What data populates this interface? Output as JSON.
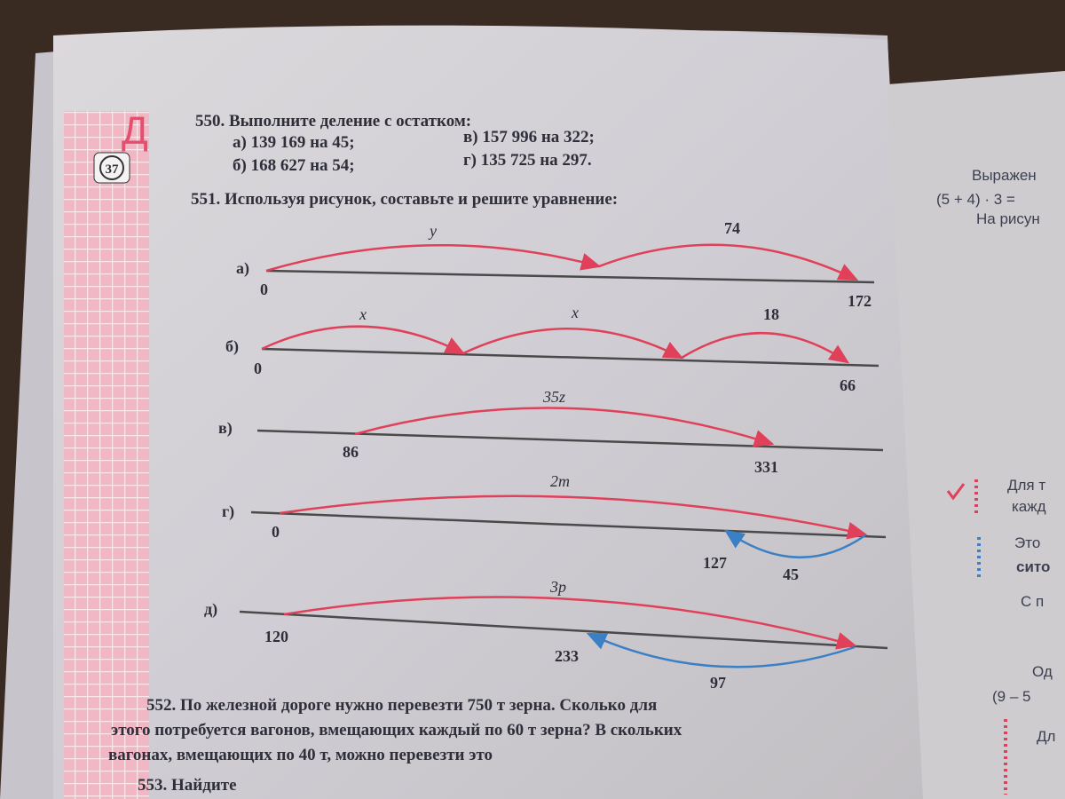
{
  "side": {
    "letter": "Д",
    "badge": "37"
  },
  "problem_550": {
    "title": "550. Выполните деление с остатком:",
    "items": [
      "а) 139 169 на 45;",
      "в) 157 996 на 322;",
      "б) 168 627 на 54;",
      "г) 135 725 на 297."
    ]
  },
  "problem_551": {
    "title": "551. Используя рисунок, составьте и решите уравнение:",
    "diagrams": [
      {
        "label": "а)",
        "points": [
          "0",
          "172"
        ],
        "arcs": [
          "y",
          "74"
        ]
      },
      {
        "label": "б)",
        "points": [
          "0",
          "66"
        ],
        "arcs": [
          "x",
          "x",
          "18"
        ]
      },
      {
        "label": "в)",
        "points": [
          "86",
          "331"
        ],
        "arcs": [
          "35z"
        ]
      },
      {
        "label": "г)",
        "points": [
          "0",
          "127"
        ],
        "arcs": [
          "2m",
          "45"
        ]
      },
      {
        "label": "д)",
        "points": [
          "120",
          "233"
        ],
        "arcs": [
          "3p",
          "97"
        ]
      }
    ]
  },
  "problem_552": {
    "lines": [
      "552. По железной дороге нужно перевезти 750 т зерна. Сколько для",
      "этого потребуется вагонов, вмещающих каждый по 60 т зерна? В скольких",
      "вагонах, вмещающих по 40 т, можно перевезти это"
    ]
  },
  "problem_553": {
    "text": "553. Найдите"
  },
  "right_page": {
    "lines": [
      "Выражен",
      "(5 + 4) · 3 =",
      "На рисун",
      "Для т",
      "кажд",
      "Это",
      "сито",
      "С п",
      "Од",
      "(9 – 5",
      "Дл"
    ]
  }
}
